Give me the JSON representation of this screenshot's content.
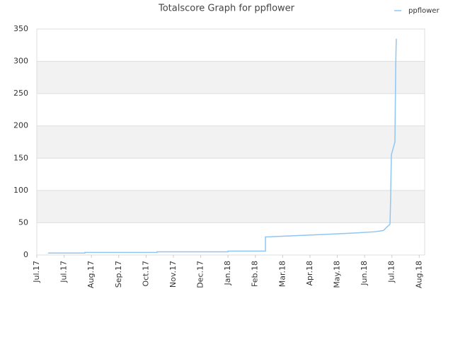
{
  "chart_data": {
    "type": "line",
    "title": "Totalscore Graph for ppflower",
    "x": [
      0.41,
      1.76,
      1.76,
      4.4,
      4.4,
      7.0,
      7.0,
      8.37,
      8.37,
      9.53,
      10.57,
      11.6,
      12.38,
      12.69,
      12.93,
      12.95,
      12.98,
      13.11,
      13.14,
      13.16
    ],
    "series": [
      {
        "name": "ppflower",
        "color": "#90c6f4",
        "values": [
          3,
          3,
          4,
          4,
          5,
          5,
          6,
          6,
          28,
          30,
          32,
          34,
          36,
          38,
          48,
          80,
          155,
          175,
          295,
          335
        ]
      }
    ],
    "xlim": [
      0,
      14.2
    ],
    "xticks": [
      {
        "value": 0,
        "label": "Jul.17"
      },
      {
        "value": 1,
        "label": "Jul.17"
      },
      {
        "value": 2,
        "label": "Aug.17"
      },
      {
        "value": 3,
        "label": "Sep.17"
      },
      {
        "value": 4,
        "label": "Oct.17"
      },
      {
        "value": 5,
        "label": "Nov.17"
      },
      {
        "value": 6,
        "label": "Dec.17"
      },
      {
        "value": 7,
        "label": "Jan.18"
      },
      {
        "value": 8,
        "label": "Feb.18"
      },
      {
        "value": 9,
        "label": "Mar.18"
      },
      {
        "value": 10,
        "label": "Apr.18"
      },
      {
        "value": 11,
        "label": "May.18"
      },
      {
        "value": 12,
        "label": "Jun.18"
      },
      {
        "value": 13,
        "label": "Jul.18"
      },
      {
        "value": 14,
        "label": "Aug.18"
      }
    ],
    "ylim": [
      0,
      350
    ],
    "yticks": [
      0,
      50,
      100,
      150,
      200,
      250,
      300,
      350
    ],
    "grid": true,
    "legend": "top-right"
  }
}
